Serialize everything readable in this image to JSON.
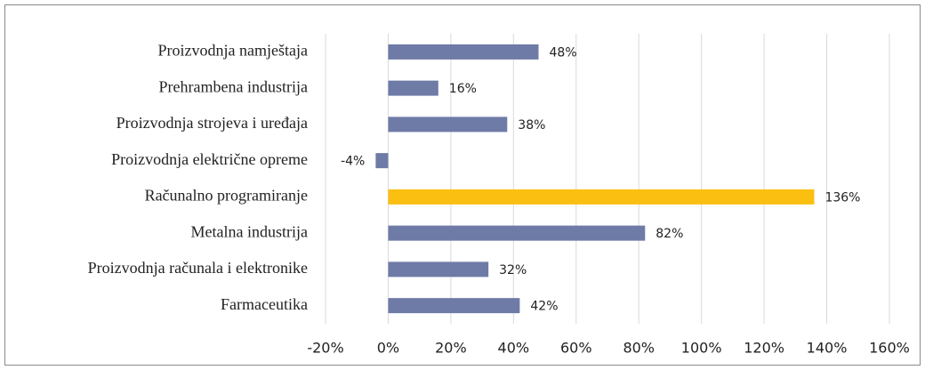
{
  "chart_data": {
    "type": "bar",
    "orientation": "horizontal",
    "categories": [
      "Proizvodnja namještaja",
      "Prehrambena industrija",
      "Proizvodnja strojeva i uređaja",
      "Proizvodnja električne opreme",
      "Računalno programiranje",
      "Metalna industrija",
      "Proizvodnja računala i elektronike",
      "Farmaceutika"
    ],
    "values": [
      48,
      16,
      38,
      -4,
      136,
      82,
      32,
      42
    ],
    "value_labels": [
      "48%",
      "16%",
      "38%",
      "-4%",
      "136%",
      "82%",
      "32%",
      "42%"
    ],
    "colors": [
      "#6e7ba6",
      "#6e7ba6",
      "#6e7ba6",
      "#6e7ba6",
      "#fbbf12",
      "#6e7ba6",
      "#6e7ba6",
      "#6e7ba6"
    ],
    "xlim": [
      -20,
      160
    ],
    "xticks": [
      {
        "value": -20,
        "label": "-20%"
      },
      {
        "value": 0,
        "label": "0%"
      },
      {
        "value": 20,
        "label": "20%"
      },
      {
        "value": 40,
        "label": "40%"
      },
      {
        "value": 60,
        "label": "60%"
      },
      {
        "value": 80,
        "label": "80%"
      },
      {
        "value": 100,
        "label": "100%"
      },
      {
        "value": 120,
        "label": "120%"
      },
      {
        "value": 140,
        "label": "140%"
      },
      {
        "value": 160,
        "label": "160%"
      }
    ],
    "grid": true
  }
}
